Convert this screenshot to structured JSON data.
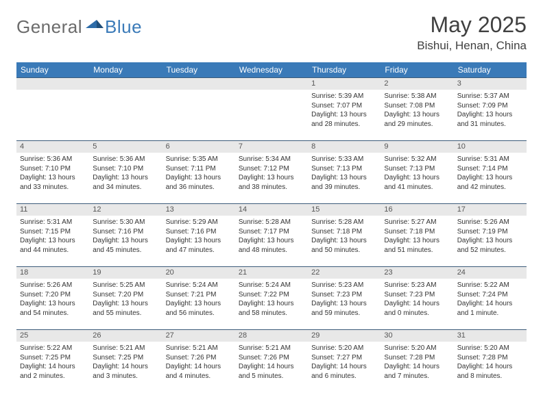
{
  "logo": {
    "text1": "General",
    "text2": "Blue"
  },
  "title": "May 2025",
  "location": "Bishui, Henan, China",
  "colors": {
    "header_bg": "#3a7ab8",
    "header_text": "#ffffff",
    "daynum_bg": "#e8e8e8",
    "row_border": "#3a5a78",
    "title_color": "#404040",
    "body_text": "#333333"
  },
  "weekdays": [
    "Sunday",
    "Monday",
    "Tuesday",
    "Wednesday",
    "Thursday",
    "Friday",
    "Saturday"
  ],
  "weeks": [
    [
      {
        "n": "",
        "sr": "",
        "ss": "",
        "dl": ""
      },
      {
        "n": "",
        "sr": "",
        "ss": "",
        "dl": ""
      },
      {
        "n": "",
        "sr": "",
        "ss": "",
        "dl": ""
      },
      {
        "n": "",
        "sr": "",
        "ss": "",
        "dl": ""
      },
      {
        "n": "1",
        "sr": "Sunrise: 5:39 AM",
        "ss": "Sunset: 7:07 PM",
        "dl": "Daylight: 13 hours and 28 minutes."
      },
      {
        "n": "2",
        "sr": "Sunrise: 5:38 AM",
        "ss": "Sunset: 7:08 PM",
        "dl": "Daylight: 13 hours and 29 minutes."
      },
      {
        "n": "3",
        "sr": "Sunrise: 5:37 AM",
        "ss": "Sunset: 7:09 PM",
        "dl": "Daylight: 13 hours and 31 minutes."
      }
    ],
    [
      {
        "n": "4",
        "sr": "Sunrise: 5:36 AM",
        "ss": "Sunset: 7:10 PM",
        "dl": "Daylight: 13 hours and 33 minutes."
      },
      {
        "n": "5",
        "sr": "Sunrise: 5:36 AM",
        "ss": "Sunset: 7:10 PM",
        "dl": "Daylight: 13 hours and 34 minutes."
      },
      {
        "n": "6",
        "sr": "Sunrise: 5:35 AM",
        "ss": "Sunset: 7:11 PM",
        "dl": "Daylight: 13 hours and 36 minutes."
      },
      {
        "n": "7",
        "sr": "Sunrise: 5:34 AM",
        "ss": "Sunset: 7:12 PM",
        "dl": "Daylight: 13 hours and 38 minutes."
      },
      {
        "n": "8",
        "sr": "Sunrise: 5:33 AM",
        "ss": "Sunset: 7:13 PM",
        "dl": "Daylight: 13 hours and 39 minutes."
      },
      {
        "n": "9",
        "sr": "Sunrise: 5:32 AM",
        "ss": "Sunset: 7:13 PM",
        "dl": "Daylight: 13 hours and 41 minutes."
      },
      {
        "n": "10",
        "sr": "Sunrise: 5:31 AM",
        "ss": "Sunset: 7:14 PM",
        "dl": "Daylight: 13 hours and 42 minutes."
      }
    ],
    [
      {
        "n": "11",
        "sr": "Sunrise: 5:31 AM",
        "ss": "Sunset: 7:15 PM",
        "dl": "Daylight: 13 hours and 44 minutes."
      },
      {
        "n": "12",
        "sr": "Sunrise: 5:30 AM",
        "ss": "Sunset: 7:16 PM",
        "dl": "Daylight: 13 hours and 45 minutes."
      },
      {
        "n": "13",
        "sr": "Sunrise: 5:29 AM",
        "ss": "Sunset: 7:16 PM",
        "dl": "Daylight: 13 hours and 47 minutes."
      },
      {
        "n": "14",
        "sr": "Sunrise: 5:28 AM",
        "ss": "Sunset: 7:17 PM",
        "dl": "Daylight: 13 hours and 48 minutes."
      },
      {
        "n": "15",
        "sr": "Sunrise: 5:28 AM",
        "ss": "Sunset: 7:18 PM",
        "dl": "Daylight: 13 hours and 50 minutes."
      },
      {
        "n": "16",
        "sr": "Sunrise: 5:27 AM",
        "ss": "Sunset: 7:18 PM",
        "dl": "Daylight: 13 hours and 51 minutes."
      },
      {
        "n": "17",
        "sr": "Sunrise: 5:26 AM",
        "ss": "Sunset: 7:19 PM",
        "dl": "Daylight: 13 hours and 52 minutes."
      }
    ],
    [
      {
        "n": "18",
        "sr": "Sunrise: 5:26 AM",
        "ss": "Sunset: 7:20 PM",
        "dl": "Daylight: 13 hours and 54 minutes."
      },
      {
        "n": "19",
        "sr": "Sunrise: 5:25 AM",
        "ss": "Sunset: 7:20 PM",
        "dl": "Daylight: 13 hours and 55 minutes."
      },
      {
        "n": "20",
        "sr": "Sunrise: 5:24 AM",
        "ss": "Sunset: 7:21 PM",
        "dl": "Daylight: 13 hours and 56 minutes."
      },
      {
        "n": "21",
        "sr": "Sunrise: 5:24 AM",
        "ss": "Sunset: 7:22 PM",
        "dl": "Daylight: 13 hours and 58 minutes."
      },
      {
        "n": "22",
        "sr": "Sunrise: 5:23 AM",
        "ss": "Sunset: 7:23 PM",
        "dl": "Daylight: 13 hours and 59 minutes."
      },
      {
        "n": "23",
        "sr": "Sunrise: 5:23 AM",
        "ss": "Sunset: 7:23 PM",
        "dl": "Daylight: 14 hours and 0 minutes."
      },
      {
        "n": "24",
        "sr": "Sunrise: 5:22 AM",
        "ss": "Sunset: 7:24 PM",
        "dl": "Daylight: 14 hours and 1 minute."
      }
    ],
    [
      {
        "n": "25",
        "sr": "Sunrise: 5:22 AM",
        "ss": "Sunset: 7:25 PM",
        "dl": "Daylight: 14 hours and 2 minutes."
      },
      {
        "n": "26",
        "sr": "Sunrise: 5:21 AM",
        "ss": "Sunset: 7:25 PM",
        "dl": "Daylight: 14 hours and 3 minutes."
      },
      {
        "n": "27",
        "sr": "Sunrise: 5:21 AM",
        "ss": "Sunset: 7:26 PM",
        "dl": "Daylight: 14 hours and 4 minutes."
      },
      {
        "n": "28",
        "sr": "Sunrise: 5:21 AM",
        "ss": "Sunset: 7:26 PM",
        "dl": "Daylight: 14 hours and 5 minutes."
      },
      {
        "n": "29",
        "sr": "Sunrise: 5:20 AM",
        "ss": "Sunset: 7:27 PM",
        "dl": "Daylight: 14 hours and 6 minutes."
      },
      {
        "n": "30",
        "sr": "Sunrise: 5:20 AM",
        "ss": "Sunset: 7:28 PM",
        "dl": "Daylight: 14 hours and 7 minutes."
      },
      {
        "n": "31",
        "sr": "Sunrise: 5:20 AM",
        "ss": "Sunset: 7:28 PM",
        "dl": "Daylight: 14 hours and 8 minutes."
      }
    ]
  ]
}
